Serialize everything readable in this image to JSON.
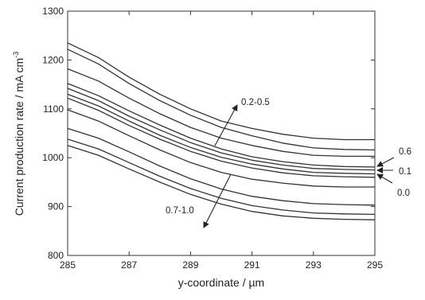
{
  "chart_data": {
    "type": "line",
    "title": "",
    "xlabel": "y-coordinate / µm",
    "ylabel": "Current production rate / mA cm",
    "ylabel_superscript": "-3",
    "xlim": [
      285,
      295
    ],
    "ylim": [
      800,
      1300
    ],
    "xticks": [
      285,
      287,
      289,
      291,
      293,
      295
    ],
    "yticks": [
      800,
      900,
      1000,
      1100,
      1200,
      1300
    ],
    "grid": false,
    "line_color": "#333333",
    "x": [
      285,
      286,
      287,
      288,
      289,
      290,
      291,
      292,
      293,
      294,
      295
    ],
    "series": [
      {
        "values": [
          1235,
          1205,
          1165,
          1130,
          1100,
          1075,
          1060,
          1048,
          1040,
          1037,
          1037
        ]
      },
      {
        "values": [
          1222,
          1192,
          1152,
          1117,
          1087,
          1062,
          1045,
          1030,
          1020,
          1017,
          1016
        ]
      },
      {
        "values": [
          1182,
          1157,
          1122,
          1090,
          1062,
          1040,
          1025,
          1013,
          1005,
          1003,
          1003
        ]
      },
      {
        "values": [
          1152,
          1127,
          1096,
          1067,
          1040,
          1018,
          1002,
          992,
          985,
          982,
          981
        ]
      },
      {
        "values": [
          1142,
          1117,
          1085,
          1057,
          1031,
          1010,
          995,
          985,
          978,
          976,
          975
        ]
      },
      {
        "values": [
          1130,
          1106,
          1075,
          1046,
          1021,
          1001,
          987,
          977,
          970,
          968,
          967
        ]
      },
      {
        "values": [
          1122,
          1097,
          1066,
          1038,
          1013,
          993,
          979,
          969,
          963,
          961,
          960
        ]
      },
      {
        "values": [
          1098,
          1075,
          1045,
          1016,
          990,
          970,
          956,
          948,
          942,
          940,
          940
        ]
      },
      {
        "values": [
          1060,
          1040,
          1012,
          983,
          957,
          936,
          921,
          912,
          906,
          904,
          903
        ]
      },
      {
        "values": [
          1038,
          1018,
          990,
          962,
          937,
          917,
          902,
          893,
          887,
          885,
          884
        ]
      },
      {
        "values": [
          1025,
          1005,
          977,
          950,
          925,
          905,
          890,
          881,
          876,
          874,
          873
        ]
      }
    ],
    "annotations": [
      {
        "text": "0.2-0.5"
      },
      {
        "text": "0.7-1.0"
      },
      {
        "text": "0.6"
      },
      {
        "text": "0.1"
      },
      {
        "text": "0.0"
      }
    ]
  }
}
